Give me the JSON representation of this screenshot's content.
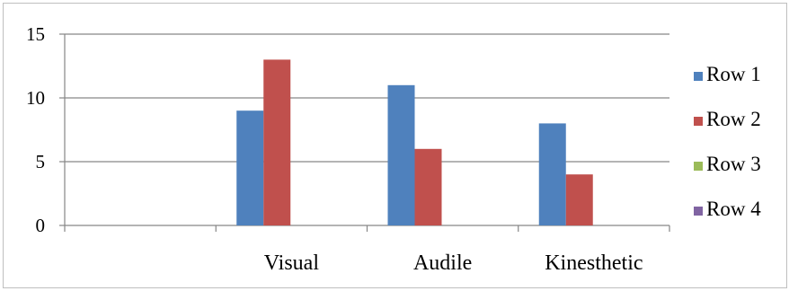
{
  "chart_data": {
    "type": "bar",
    "categories": [
      "",
      "Visual",
      "Audile",
      "Kinesthetic"
    ],
    "series": [
      {
        "name": "Row 1",
        "color": "#4F81BD",
        "values": [
          null,
          9,
          11,
          8
        ]
      },
      {
        "name": "Row 2",
        "color": "#C0504D",
        "values": [
          null,
          13,
          6,
          4
        ]
      },
      {
        "name": "Row 3",
        "color": "#9BBB59",
        "values": [
          null,
          null,
          null,
          null
        ]
      },
      {
        "name": "Row 4",
        "color": "#8064A2",
        "values": [
          null,
          null,
          null,
          null
        ]
      }
    ],
    "yticks": [
      "0",
      "5",
      "10",
      "15"
    ],
    "ylim": [
      0,
      15
    ],
    "grid": true,
    "legend": "right",
    "title": "",
    "xlabel": "",
    "ylabel": ""
  }
}
